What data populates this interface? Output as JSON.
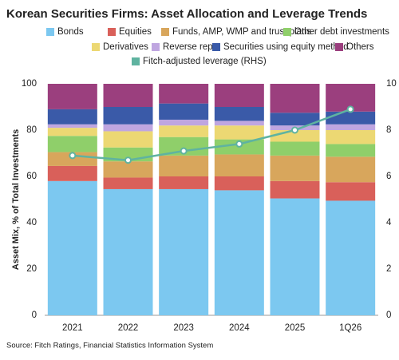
{
  "chart_data": {
    "type": "bar",
    "title": "Korean Securities Firms: Asset Allocation and Leverage Trends",
    "y_label": "Asset Mix, % of Total Investments",
    "source": "Source: Fitch Ratings, Financial Statistics Information System",
    "categories": [
      "2021",
      "2022",
      "2023",
      "2024",
      "2025",
      "1Q26"
    ],
    "stacked": true,
    "ylim": [
      0,
      100
    ],
    "yticks": [
      0,
      20,
      40,
      60,
      80,
      100
    ],
    "y2lim": [
      0,
      10
    ],
    "y2ticks": [
      0,
      2,
      4,
      6,
      8,
      10
    ],
    "series": [
      {
        "name": "Bonds",
        "color": "#7cc8f0",
        "values": [
          58,
          54.5,
          54.5,
          54,
          50.5,
          49.5
        ]
      },
      {
        "name": "Equities",
        "color": "#d9605a",
        "values": [
          6.5,
          5,
          5.5,
          6,
          7.5,
          8
        ]
      },
      {
        "name": "Funds, AMP, WMP and trust plans",
        "color": "#d8a65c",
        "values": [
          6,
          7,
          9,
          9.5,
          11,
          11
        ]
      },
      {
        "name": "Other debt investments",
        "color": "#8fcf6a",
        "values": [
          7,
          6,
          8,
          6.5,
          6,
          5.5
        ]
      },
      {
        "name": "Derivatives",
        "color": "#ecd873",
        "values": [
          3.5,
          7,
          5,
          6,
          5,
          6
        ]
      },
      {
        "name": "Reverse repo",
        "color": "#bfa6e0",
        "values": [
          1.5,
          3,
          2.5,
          2,
          2,
          2.5
        ]
      },
      {
        "name": "Securities using equity method",
        "color": "#3a5aa8",
        "values": [
          6.5,
          7.5,
          7,
          6,
          5.5,
          5.5
        ]
      },
      {
        "name": "Others",
        "color": "#9b3f7e",
        "values": [
          11,
          10,
          8.5,
          10,
          12.5,
          12
        ]
      },
      {
        "name": "Fitch-adjusted leverage (RHS)",
        "color": "#5fb3a0",
        "type": "line",
        "axis": "y2",
        "values": [
          6.9,
          6.7,
          7.1,
          7.4,
          8.0,
          8.9
        ]
      }
    ]
  }
}
